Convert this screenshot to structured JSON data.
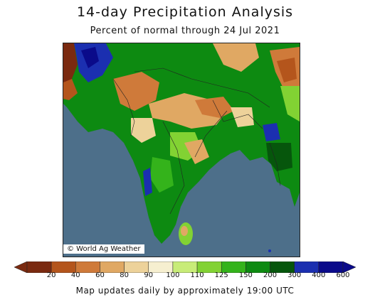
{
  "map": {
    "title": "14-day Precipitation Analysis",
    "subtitle": "Percent of normal through 24 Jul 2021",
    "credit": "© World Ag Weather",
    "footer": "Map updates daily by approximately 19:00 UTC"
  },
  "legend": {
    "labels": [
      "20",
      "40",
      "60",
      "80",
      "90",
      "100",
      "110",
      "125",
      "150",
      "200",
      "300",
      "400",
      "600"
    ],
    "colors": [
      "#7a2a10",
      "#b4551c",
      "#cf7a3a",
      "#e0a863",
      "#edd29a",
      "#f6efd0",
      "#c8ec78",
      "#82d233",
      "#34b31b",
      "#0d8a11",
      "#06560c",
      "#1b2fb0",
      "#0a0a8a"
    ]
  },
  "colors": {
    "ocean": "#4d6f8a",
    "dry_brown": "#b4551c",
    "wet_green": "#0d8a11",
    "very_wet_blue": "#1b2fb0"
  }
}
